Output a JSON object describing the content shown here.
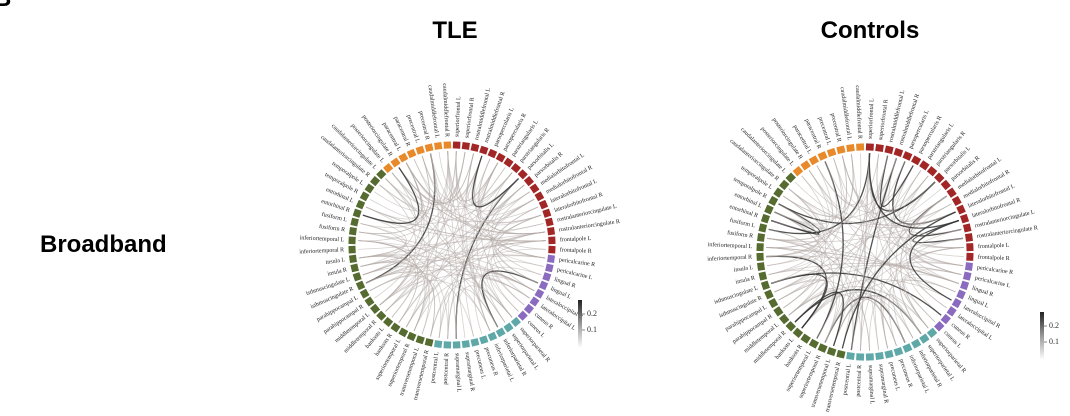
{
  "panel_label": "B",
  "columns": [
    "TLE",
    "Controls"
  ],
  "row_label": "Broadband",
  "colorbar_ticks": [
    0.2,
    0.1
  ],
  "regions": [
    {
      "label": "superiorfrontal L",
      "color": "#a32626"
    },
    {
      "label": "superiorfrontal R",
      "color": "#a32626"
    },
    {
      "label": "rostralmiddlefrontal L",
      "color": "#a32626"
    },
    {
      "label": "rostralmiddlefrontal R",
      "color": "#a32626"
    },
    {
      "label": "parsopercularis L",
      "color": "#a32626"
    },
    {
      "label": "parsopercularis R",
      "color": "#a32626"
    },
    {
      "label": "parstriangularis L",
      "color": "#a32626"
    },
    {
      "label": "parstriangularis R",
      "color": "#a32626"
    },
    {
      "label": "parsorbitalis L",
      "color": "#a32626"
    },
    {
      "label": "parsorbitalis R",
      "color": "#a32626"
    },
    {
      "label": "medialorbitofrontal L",
      "color": "#a32626"
    },
    {
      "label": "medialorbitofrontal R",
      "color": "#a32626"
    },
    {
      "label": "lateralorbitofrontal L",
      "color": "#a32626"
    },
    {
      "label": "lateralorbitofrontal R",
      "color": "#a32626"
    },
    {
      "label": "rostralanteriorcingulate L",
      "color": "#a32626"
    },
    {
      "label": "rostralanteriorcingulate R",
      "color": "#a32626"
    },
    {
      "label": "frontalpole L",
      "color": "#a32626"
    },
    {
      "label": "frontalpole R",
      "color": "#a32626"
    },
    {
      "label": "pericalcarine R",
      "color": "#8a6bbf"
    },
    {
      "label": "pericalcarine L",
      "color": "#8a6bbf"
    },
    {
      "label": "lingual R",
      "color": "#8a6bbf"
    },
    {
      "label": "lingual L",
      "color": "#8a6bbf"
    },
    {
      "label": "lateraloccipital R",
      "color": "#8a6bbf"
    },
    {
      "label": "lateraloccipital L",
      "color": "#8a6bbf"
    },
    {
      "label": "cuneus R",
      "color": "#8a6bbf"
    },
    {
      "label": "cuneus L",
      "color": "#8a6bbf"
    },
    {
      "label": "superiorparietal R",
      "color": "#5fa8a8"
    },
    {
      "label": "superiorparietal L",
      "color": "#5fa8a8"
    },
    {
      "label": "inferiorparietal R",
      "color": "#5fa8a8"
    },
    {
      "label": "inferiorparietal L",
      "color": "#5fa8a8"
    },
    {
      "label": "precuneus R",
      "color": "#5fa8a8"
    },
    {
      "label": "precuneus L",
      "color": "#5fa8a8"
    },
    {
      "label": "supramarginal R",
      "color": "#5fa8a8"
    },
    {
      "label": "supramarginal L",
      "color": "#5fa8a8"
    },
    {
      "label": "postcentral R",
      "color": "#5fa8a8"
    },
    {
      "label": "postcentral L",
      "color": "#5fa8a8"
    },
    {
      "label": "transversetemporal R",
      "color": "#566b2f"
    },
    {
      "label": "transversetemporal L",
      "color": "#566b2f"
    },
    {
      "label": "superiortemporal R",
      "color": "#566b2f"
    },
    {
      "label": "superiortemporal L",
      "color": "#566b2f"
    },
    {
      "label": "bankssts R",
      "color": "#566b2f"
    },
    {
      "label": "bankssts L",
      "color": "#566b2f"
    },
    {
      "label": "middletemporal R",
      "color": "#566b2f"
    },
    {
      "label": "middletemporal L",
      "color": "#566b2f"
    },
    {
      "label": "parahippocampal R",
      "color": "#566b2f"
    },
    {
      "label": "parahippocampal L",
      "color": "#566b2f"
    },
    {
      "label": "isthmuscingulate R",
      "color": "#566b2f"
    },
    {
      "label": "isthmuscingulate L",
      "color": "#566b2f"
    },
    {
      "label": "insula R",
      "color": "#566b2f"
    },
    {
      "label": "insula L",
      "color": "#566b2f"
    },
    {
      "label": "inferiortemporal R",
      "color": "#566b2f"
    },
    {
      "label": "inferiortemporal L",
      "color": "#566b2f"
    },
    {
      "label": "fusiform R",
      "color": "#566b2f"
    },
    {
      "label": "fusiform L",
      "color": "#566b2f"
    },
    {
      "label": "entorhinal R",
      "color": "#566b2f"
    },
    {
      "label": "entorhinal L",
      "color": "#566b2f"
    },
    {
      "label": "temporalpole R",
      "color": "#566b2f"
    },
    {
      "label": "temporalpole L",
      "color": "#566b2f"
    },
    {
      "label": "caudalanteriorcingulate R",
      "color": "#566b2f"
    },
    {
      "label": "caudalanteriorcingulate L",
      "color": "#566b2f"
    },
    {
      "label": "posteriorcingulate L",
      "color": "#e8892a"
    },
    {
      "label": "posteriorcingulate R",
      "color": "#e8892a"
    },
    {
      "label": "paracentral L",
      "color": "#e8892a"
    },
    {
      "label": "paracentral R",
      "color": "#e8892a"
    },
    {
      "label": "precentral L",
      "color": "#e8892a"
    },
    {
      "label": "precentral R",
      "color": "#e8892a"
    },
    {
      "label": "caudalmiddlefrontal L",
      "color": "#e8892a"
    },
    {
      "label": "caudalmiddlefrontal R",
      "color": "#e8892a"
    }
  ]
}
